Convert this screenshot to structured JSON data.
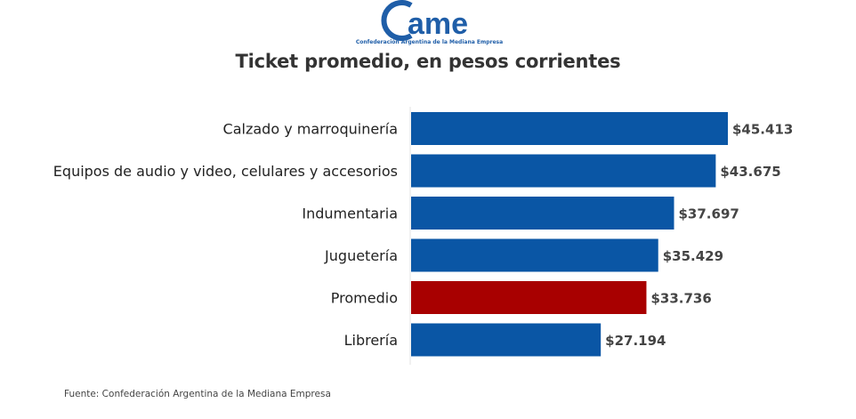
{
  "logo": {
    "wordmark": "ame",
    "initial": "C",
    "tagline": "Confederación Argentina de la Mediana Empresa",
    "color": "#1f5ea8"
  },
  "chart_data": {
    "type": "bar",
    "orientation": "horizontal",
    "title": "Ticket promedio, en pesos corrientes",
    "categories": [
      "Calzado y marroquinería",
      "Equipos de audio y video, celulares y accesorios",
      "Indumentaria",
      "Juguetería",
      "Promedio",
      "Librería"
    ],
    "values": [
      45413,
      43675,
      37697,
      35429,
      33736,
      27194
    ],
    "value_labels": [
      "$45.413",
      "$43.675",
      "$37.697",
      "$35.429",
      "$33.736",
      "$27.194"
    ],
    "colors": [
      "#0a56a5",
      "#0a56a5",
      "#0a56a5",
      "#0a56a5",
      "#a80000",
      "#0a56a5"
    ],
    "xlim": [
      0,
      45413
    ],
    "grid": false,
    "legend": "none"
  },
  "source": "Fuente: Confederación Argentina de la Mediana Empresa"
}
